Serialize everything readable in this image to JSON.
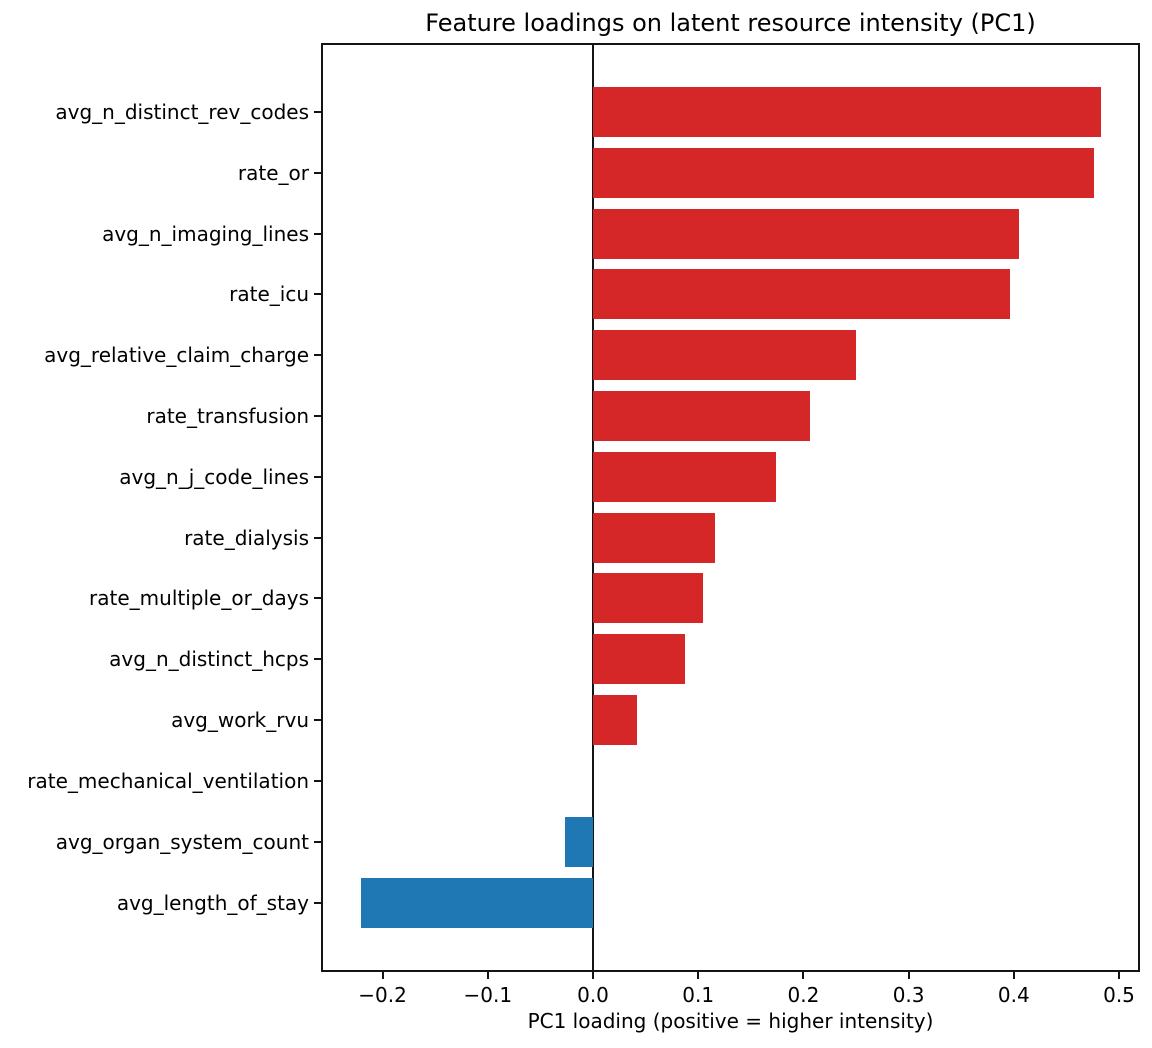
{
  "chart_data": {
    "type": "bar",
    "orientation": "horizontal",
    "title": "Feature loadings on latent resource intensity (PC1)",
    "xlabel": "PC1 loading (positive = higher intensity)",
    "ylabel": "",
    "categories": [
      "avg_n_distinct_rev_codes",
      "rate_or",
      "avg_n_imaging_lines",
      "rate_icu",
      "avg_relative_claim_charge",
      "rate_transfusion",
      "avg_n_j_code_lines",
      "rate_dialysis",
      "rate_multiple_or_days",
      "avg_n_distinct_hcps",
      "avg_work_rvu",
      "rate_mechanical_ventilation",
      "avg_organ_system_count",
      "avg_length_of_stay"
    ],
    "values": [
      0.483,
      0.476,
      0.405,
      0.396,
      0.25,
      0.206,
      0.174,
      0.116,
      0.105,
      0.087,
      0.042,
      0.0,
      -0.027,
      -0.221
    ],
    "xlim": [
      -0.257,
      0.518
    ],
    "xticks": [
      -0.2,
      -0.1,
      0.0,
      0.1,
      0.2,
      0.3,
      0.4,
      0.5
    ],
    "xtick_labels": [
      "−0.2",
      "−0.1",
      "0.0",
      "0.1",
      "0.2",
      "0.3",
      "0.4",
      "0.5"
    ],
    "grid": false,
    "legend": "none",
    "colors": {
      "positive_bar": "#d62728",
      "negative_bar": "#1f77b4",
      "axis": "#141414",
      "background": "#ffffff"
    }
  }
}
